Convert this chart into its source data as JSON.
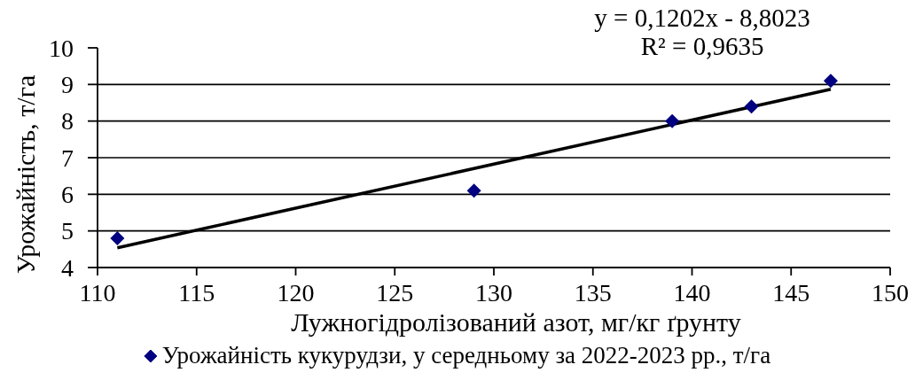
{
  "chart_data": {
    "type": "scatter",
    "xlabel": "Лужногідролізований азот, мг/кг ґрунту",
    "ylabel": "Урожайність, т/га",
    "annotations": [
      "y = 0,1202x - 8,8023",
      "R² = 0,9635"
    ],
    "x": [
      111,
      129,
      139,
      143,
      147
    ],
    "series": [
      {
        "name": "Урожайність кукурудзи, у середньому за 2022-2023 рр., т/га",
        "color": "#000080",
        "values": [
          4.8,
          6.1,
          8.0,
          8.4,
          9.1
        ],
        "marker": "diamond"
      },
      {
        "type": "line",
        "color": "#000000",
        "x": [
          111,
          147
        ],
        "values": [
          4.54,
          8.87
        ],
        "marker": "none"
      }
    ],
    "xlim": [
      110,
      150
    ],
    "xticks": [
      110,
      115,
      120,
      125,
      130,
      135,
      140,
      145,
      150
    ],
    "ylim": [
      4,
      10
    ],
    "yticks": [
      4,
      5,
      6,
      7,
      8,
      9,
      10
    ],
    "grid": "y",
    "legend": "bottom"
  }
}
